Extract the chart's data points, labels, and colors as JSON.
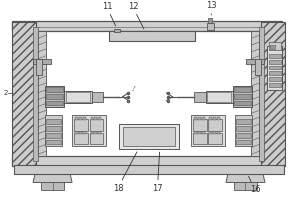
{
  "bg_color": "#ffffff",
  "lc": "#555555",
  "ann_color": "#333333",
  "wall_fc": "#cccccc",
  "rail_fc": "#bbbbbb",
  "dark_fc": "#999999",
  "mid_fc": "#aaaaaa",
  "light_fc": "#eeeeee",
  "fs": 6.0
}
